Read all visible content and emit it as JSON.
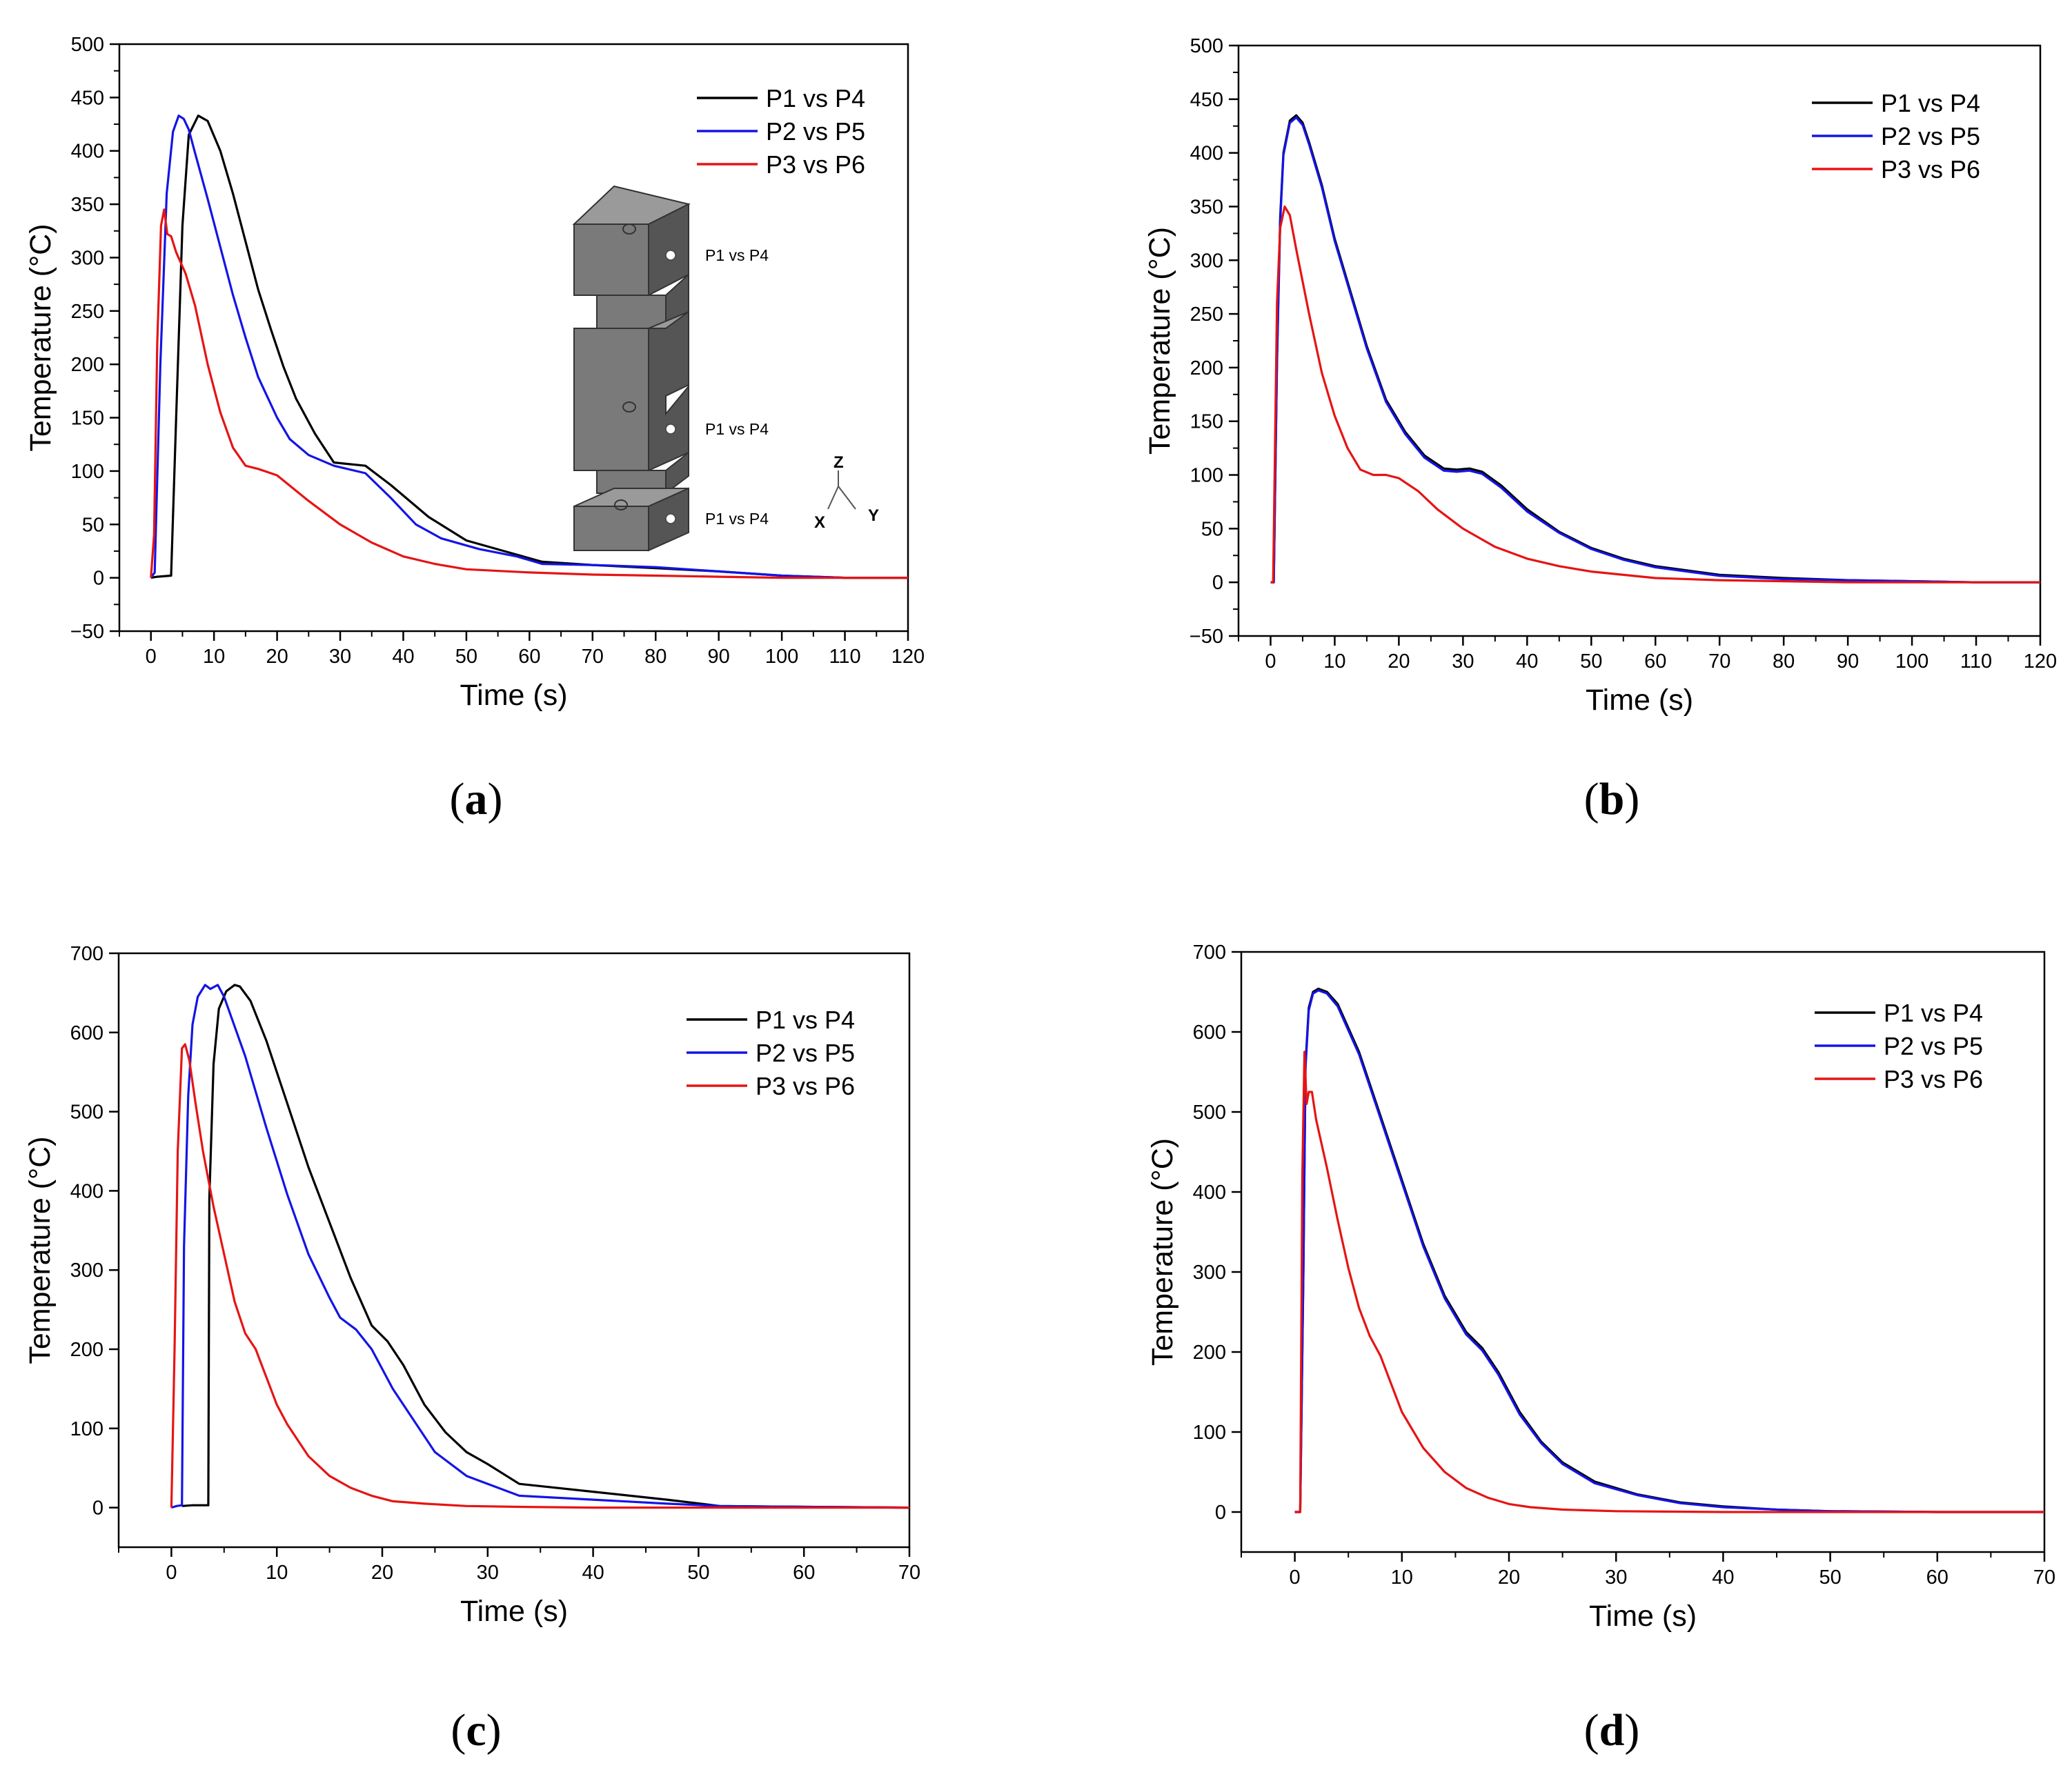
{
  "colors": {
    "P1vsP4": "#000000",
    "P2vsP5": "#1414e6",
    "P3vsP6": "#e61414"
  },
  "chart_data": [
    {
      "panel": "a",
      "type": "line",
      "caption": {
        "open": "(",
        "letter": "a",
        "close": ")"
      },
      "xlabel": "Time (s)",
      "ylabel": "Temperature (°C)",
      "xlim": [
        -5,
        120
      ],
      "ylim": [
        -50,
        500
      ],
      "xticks": [
        0,
        10,
        20,
        30,
        40,
        50,
        60,
        70,
        80,
        90,
        100,
        110,
        120
      ],
      "yticks": [
        -50,
        0,
        50,
        100,
        150,
        200,
        250,
        300,
        350,
        400,
        450,
        500
      ],
      "inset": {
        "labels": [
          "P1 vs P4",
          "P1 vs P4",
          "P1 vs P4"
        ],
        "axes": {
          "z": "Z",
          "x": "X",
          "y": "Y"
        }
      },
      "series": [
        {
          "name": "P1 vs P4",
          "color": "#000000",
          "x": [
            0,
            1,
            3.2,
            4,
            5,
            6,
            7.5,
            9,
            11,
            13,
            15,
            17,
            19,
            21,
            23,
            26,
            29,
            34,
            38,
            44,
            50,
            56,
            62,
            70,
            80,
            90,
            100,
            110,
            120
          ],
          "y": [
            0,
            1,
            2,
            150,
            330,
            415,
            433,
            428,
            400,
            360,
            315,
            270,
            233,
            198,
            168,
            135,
            108,
            105,
            87,
            57,
            35,
            25,
            15,
            12,
            9,
            6,
            2,
            0,
            0
          ]
        },
        {
          "name": "P2 vs P5",
          "color": "#1414e6",
          "x": [
            0,
            0.6,
            1.5,
            2.5,
            3.5,
            4.4,
            5.2,
            6,
            7,
            9,
            11,
            13,
            15,
            17,
            20,
            22,
            25,
            29,
            34,
            38,
            42,
            46,
            52,
            58,
            62,
            70,
            80,
            90,
            100,
            110,
            120
          ],
          "y": [
            0,
            5,
            200,
            360,
            418,
            433,
            430,
            420,
            398,
            355,
            310,
            265,
            225,
            188,
            150,
            130,
            115,
            105,
            98,
            75,
            50,
            37,
            27,
            20,
            13,
            12,
            10,
            6,
            2,
            0,
            0
          ]
        },
        {
          "name": "P3 vs P6",
          "color": "#e61414",
          "x": [
            0,
            0.5,
            1,
            1.6,
            2.1,
            2.6,
            3.2,
            4,
            5.5,
            7,
            9,
            11,
            13,
            15,
            17,
            20,
            25,
            30,
            35,
            40,
            45,
            50,
            60,
            70,
            80,
            90,
            100,
            110,
            120
          ],
          "y": [
            0,
            40,
            220,
            330,
            345,
            322,
            320,
            305,
            285,
            255,
            200,
            155,
            122,
            105,
            102,
            96,
            72,
            50,
            33,
            20,
            13,
            8,
            5,
            3,
            2,
            1,
            0,
            0,
            0
          ]
        }
      ]
    },
    {
      "panel": "b",
      "type": "line",
      "caption": {
        "open": "(",
        "letter": "b",
        "close": ")"
      },
      "xlabel": "Time (s)",
      "ylabel": "Temperature (°C)",
      "xlim": [
        -5,
        120
      ],
      "ylim": [
        -50,
        500
      ],
      "xticks": [
        0,
        10,
        20,
        30,
        40,
        50,
        60,
        70,
        80,
        90,
        100,
        110,
        120
      ],
      "yticks": [
        -50,
        0,
        50,
        100,
        150,
        200,
        250,
        300,
        350,
        400,
        450,
        500
      ],
      "series": [
        {
          "name": "P1 vs P4",
          "color": "#000000",
          "x": [
            0,
            0.5,
            1,
            1.5,
            2,
            3,
            4,
            5,
            6,
            8,
            10,
            12,
            15,
            18,
            21,
            24,
            27,
            29,
            31,
            33,
            36,
            40,
            45,
            50,
            55,
            60,
            70,
            80,
            90,
            100,
            110,
            120
          ],
          "y": [
            0,
            0,
            210,
            340,
            400,
            430,
            435,
            428,
            410,
            370,
            320,
            280,
            220,
            170,
            140,
            118,
            106,
            105,
            106,
            103,
            90,
            68,
            47,
            32,
            22,
            15,
            7,
            4,
            2,
            1,
            0,
            0
          ]
        },
        {
          "name": "P2 vs P5",
          "color": "#1414e6",
          "x": [
            0,
            0.5,
            1,
            1.5,
            2,
            3,
            4,
            5,
            6,
            8,
            10,
            12,
            15,
            18,
            21,
            24,
            27,
            29,
            31,
            33,
            36,
            40,
            45,
            50,
            55,
            60,
            70,
            80,
            90,
            100,
            110,
            120
          ],
          "y": [
            0,
            0,
            205,
            335,
            398,
            428,
            433,
            426,
            408,
            368,
            318,
            278,
            218,
            168,
            138,
            116,
            104,
            103,
            104,
            101,
            88,
            66,
            46,
            31,
            21,
            14,
            6,
            3,
            2,
            1,
            0,
            0
          ]
        },
        {
          "name": "P3 vs P6",
          "color": "#e61414",
          "x": [
            0,
            0.4,
            1,
            1.5,
            2.2,
            3,
            4,
            6,
            8,
            10,
            12,
            14,
            16,
            18,
            20,
            23,
            26,
            30,
            35,
            40,
            45,
            50,
            60,
            70,
            80,
            90,
            100,
            110,
            120
          ],
          "y": [
            0,
            0,
            260,
            330,
            350,
            342,
            310,
            250,
            195,
            155,
            125,
            105,
            100,
            100,
            97,
            85,
            68,
            50,
            33,
            22,
            15,
            10,
            4,
            2,
            1,
            0,
            0,
            0,
            0
          ]
        }
      ]
    },
    {
      "panel": "c",
      "type": "line",
      "caption": {
        "open": "(",
        "letter": "c",
        "close": ")"
      },
      "xlabel": "Time (s)",
      "ylabel": "Temperature (°C)",
      "xlim": [
        -5,
        70
      ],
      "ylim": [
        -50,
        700
      ],
      "xticks": [
        0,
        10,
        20,
        30,
        40,
        50,
        60,
        70
      ],
      "yticks": [
        0,
        100,
        200,
        300,
        400,
        500,
        600,
        700
      ],
      "series": [
        {
          "name": "P1 vs P4",
          "color": "#000000",
          "x": [
            1,
            2,
            3.5,
            3.6,
            4,
            4.5,
            5.2,
            6,
            6.5,
            7.5,
            9,
            11,
            13,
            15,
            17,
            19,
            20.5,
            22,
            24,
            26,
            28,
            30,
            33,
            40,
            47,
            52,
            60,
            70
          ],
          "y": [
            2,
            3,
            3,
            390,
            560,
            630,
            652,
            660,
            658,
            640,
            590,
            510,
            430,
            360,
            290,
            230,
            210,
            180,
            130,
            95,
            70,
            55,
            30,
            20,
            10,
            2,
            1,
            0
          ]
        },
        {
          "name": "P2 vs P5",
          "color": "#1414e6",
          "x": [
            0,
            0.5,
            1,
            1.2,
            1.6,
            2,
            2.5,
            3.2,
            3.7,
            4.4,
            5,
            7,
            9,
            11,
            13,
            15,
            16,
            17.5,
            19,
            21,
            23,
            25,
            28,
            33,
            40,
            47,
            52,
            60,
            70
          ],
          "y": [
            0,
            2,
            3,
            330,
            520,
            610,
            645,
            660,
            655,
            660,
            645,
            570,
            480,
            395,
            320,
            265,
            240,
            225,
            200,
            150,
            110,
            70,
            40,
            15,
            10,
            5,
            2,
            1,
            0
          ]
        },
        {
          "name": "P3 vs P6",
          "color": "#e61414",
          "x": [
            0,
            0.3,
            0.6,
            1,
            1.3,
            1.7,
            2.3,
            3,
            4,
            5,
            6,
            7,
            8,
            9,
            10,
            11,
            13,
            15,
            17,
            19,
            21,
            24,
            28,
            33,
            40,
            50,
            60,
            70
          ],
          "y": [
            0,
            200,
            450,
            580,
            585,
            565,
            510,
            450,
            380,
            320,
            260,
            220,
            200,
            165,
            130,
            105,
            65,
            40,
            25,
            15,
            8,
            5,
            2,
            1,
            0,
            0,
            0,
            0
          ]
        }
      ]
    },
    {
      "panel": "d",
      "type": "line",
      "caption": {
        "open": "(",
        "letter": "d",
        "close": ")"
      },
      "xlabel": "Time (s)",
      "ylabel": "Temperature (°C)",
      "xlim": [
        -5,
        70
      ],
      "ylim": [
        -50,
        700
      ],
      "xticks": [
        0,
        10,
        20,
        30,
        40,
        50,
        60,
        70
      ],
      "yticks": [
        0,
        100,
        200,
        300,
        400,
        500,
        600,
        700
      ],
      "series": [
        {
          "name": "P1 vs P4",
          "color": "#000000",
          "x": [
            0,
            0.5,
            0.8,
            1,
            1.3,
            1.7,
            2.2,
            3,
            4,
            6,
            8,
            10,
            12,
            14,
            16,
            17.5,
            19,
            21,
            23,
            25,
            28,
            32,
            36,
            40,
            45,
            50,
            60,
            70
          ],
          "y": [
            0,
            0,
            300,
            560,
            630,
            650,
            654,
            650,
            635,
            575,
            495,
            415,
            335,
            270,
            225,
            205,
            175,
            125,
            88,
            62,
            38,
            22,
            12,
            7,
            3,
            1,
            0,
            0
          ]
        },
        {
          "name": "P2 vs P5",
          "color": "#1414e6",
          "x": [
            0,
            0.5,
            0.8,
            1,
            1.3,
            1.7,
            2.2,
            3,
            4,
            6,
            8,
            10,
            12,
            14,
            16,
            17.5,
            19,
            21,
            23,
            25,
            28,
            32,
            36,
            40,
            45,
            50,
            60,
            70
          ],
          "y": [
            0,
            0,
            295,
            555,
            627,
            648,
            652,
            648,
            632,
            572,
            492,
            412,
            332,
            267,
            222,
            202,
            172,
            122,
            86,
            60,
            36,
            21,
            11,
            6,
            3,
            1,
            0,
            0
          ]
        },
        {
          "name": "P3 vs P6",
          "color": "#e61414",
          "x": [
            0,
            0.5,
            0.7,
            0.9,
            1.1,
            1.3,
            1.6,
            2,
            3,
            4,
            5,
            6,
            7,
            8,
            9,
            10,
            12,
            14,
            16,
            18,
            20,
            22,
            25,
            30,
            40,
            50,
            60,
            70
          ],
          "y": [
            0,
            0,
            420,
            575,
            510,
            525,
            525,
            490,
            430,
            365,
            305,
            255,
            220,
            195,
            160,
            125,
            80,
            50,
            30,
            18,
            10,
            6,
            3,
            1,
            0,
            0,
            0,
            0
          ]
        }
      ]
    }
  ]
}
